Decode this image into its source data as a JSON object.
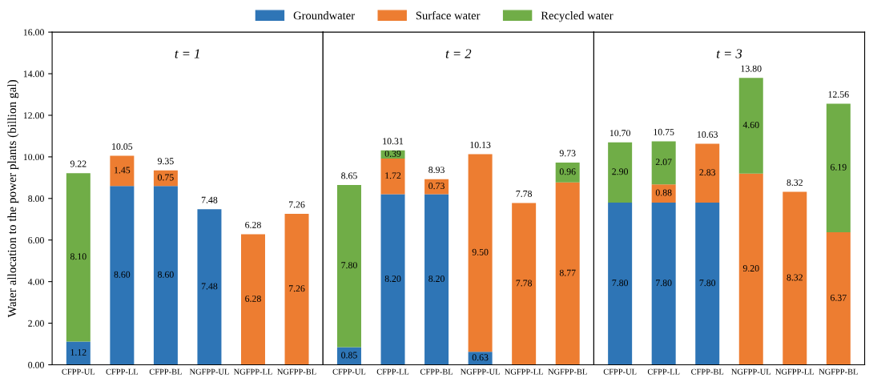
{
  "chart_data": [
    {
      "type": "bar",
      "stacked": true,
      "title": "t = 1",
      "ylabel": "Water allocation to the power plants (billion gal)",
      "legend": "top",
      "categories": [
        "CFPP-UL",
        "CFPP-LL",
        "CFPP-BL",
        "NGFPP-UL",
        "NGFPP-LL",
        "NGFPP-BL"
      ],
      "ylim": [
        0,
        16
      ],
      "yticks": [
        {
          "value": 0,
          "label": "0.00"
        },
        {
          "value": 2,
          "label": "2.00"
        },
        {
          "value": 4,
          "label": "4.00"
        },
        {
          "value": 6,
          "label": "6.00"
        },
        {
          "value": 8,
          "label": "8.00"
        },
        {
          "value": 10,
          "label": "10.00"
        },
        {
          "value": 12,
          "label": "12.00"
        },
        {
          "value": 14,
          "label": "14.00"
        },
        {
          "value": 16,
          "label": "16.00"
        }
      ],
      "series": [
        {
          "name": "Groundwater",
          "color": "#2e75b6",
          "values": [
            1.12,
            8.6,
            8.6,
            7.48,
            null,
            null
          ],
          "value_labels": [
            "1.12",
            "8.60",
            "8.60",
            "7.48",
            null,
            null
          ]
        },
        {
          "name": "Surface water",
          "color": "#ed7d31",
          "values": [
            null,
            1.45,
            0.75,
            null,
            6.28,
            7.26
          ],
          "value_labels": [
            null,
            "1.45",
            "0.75",
            null,
            "6.28",
            "7.26"
          ]
        },
        {
          "name": "Recycled water",
          "color": "#70ad47",
          "values": [
            8.1,
            null,
            null,
            null,
            null,
            null
          ],
          "value_labels": [
            "8.10",
            null,
            null,
            null,
            null,
            null
          ]
        }
      ],
      "totals": [
        "9.22",
        "10.05",
        "9.35",
        "7.48",
        "6.28",
        "7.26"
      ]
    },
    {
      "type": "bar",
      "stacked": true,
      "title": "t = 2",
      "tick_labels": "x",
      "categories": [
        "CFPP-UL",
        "CFPP-LL",
        "CFPP-BL",
        "NGFPP-UL",
        "NGFPP-LL",
        "NGFPP-BL"
      ],
      "ylim": [
        0,
        16
      ],
      "series": [
        {
          "color": "#2e75b6",
          "values": [
            0.85,
            8.2,
            8.2,
            0.63,
            null,
            null
          ],
          "value_labels": [
            "0.85",
            "8.20",
            "8.20",
            "0.63",
            null,
            null
          ]
        },
        {
          "color": "#ed7d31",
          "values": [
            null,
            1.72,
            0.73,
            9.5,
            7.78,
            8.77
          ],
          "value_labels": [
            null,
            "1.72",
            "0.73",
            "9.50",
            "7.78",
            "8.77"
          ]
        },
        {
          "color": "#70ad47",
          "values": [
            7.8,
            0.39,
            null,
            null,
            null,
            0.96
          ],
          "value_labels": [
            "7.80",
            "0.39",
            null,
            null,
            null,
            "0.96"
          ]
        }
      ],
      "totals": [
        "8.65",
        "10.31",
        "8.93",
        "10.13",
        "7.78",
        "9.73"
      ]
    },
    {
      "type": "bar",
      "stacked": true,
      "title": "t = 3",
      "tick_labels": "x",
      "categories": [
        "CFPP-UL",
        "CFPP-LL",
        "CFPP-BL",
        "NGFPP-UL",
        "NGFPP-LL",
        "NGFPP-BL"
      ],
      "ylim": [
        0,
        16
      ],
      "series": [
        {
          "color": "#2e75b6",
          "values": [
            7.8,
            7.8,
            7.8,
            null,
            null,
            null
          ],
          "value_labels": [
            "7.80",
            "7.80",
            "7.80",
            null,
            null,
            null
          ]
        },
        {
          "color": "#ed7d31",
          "values": [
            null,
            0.88,
            2.83,
            9.2,
            8.32,
            6.37
          ],
          "value_labels": [
            null,
            "0.88",
            "2.83",
            "9.20",
            "8.32",
            "6.37"
          ]
        },
        {
          "color": "#70ad47",
          "values": [
            2.9,
            2.07,
            null,
            4.6,
            null,
            6.19
          ],
          "value_labels": [
            "2.90",
            "2.07",
            null,
            "4.60",
            null,
            "6.19"
          ]
        }
      ],
      "totals": [
        "10.70",
        "10.75",
        "10.63",
        "13.80",
        "8.32",
        "12.56"
      ]
    }
  ]
}
